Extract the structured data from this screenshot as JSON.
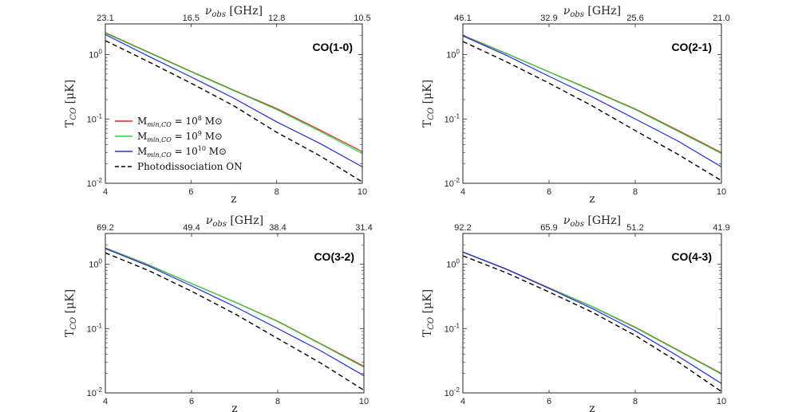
{
  "chart_data": {
    "type": "line",
    "layout": "2x2 grid",
    "shared": {
      "xlabel": "z",
      "ylabel_main": "T",
      "ylabel_sub": "CO",
      "ylabel_units": "[μK]",
      "top_xlabel_main": "ν",
      "top_xlabel_sub": "obs",
      "top_xlabel_units": "[GHz]",
      "xlim": [
        4,
        10
      ],
      "ylim": [
        0.01,
        3
      ],
      "yscale": "log",
      "xticks": [
        4,
        6,
        8,
        10
      ],
      "yticks": [
        {
          "value": 0.01,
          "base": "10",
          "exp": "-2"
        },
        {
          "value": 0.1,
          "base": "10",
          "exp": "-1"
        },
        {
          "value": 1,
          "base": "10",
          "exp": "0"
        }
      ],
      "top_tick_z": [
        4,
        6,
        8,
        10
      ],
      "x": [
        4,
        5,
        6,
        7,
        8,
        9,
        10
      ]
    },
    "legend": {
      "placement": "lower-left of CO(1-0) panel",
      "entries": [
        {
          "prefix": "M",
          "sub": "min,CO",
          "mid": " = 10",
          "sup": "8",
          "suffix": " M⊙",
          "color": "#e8232a",
          "dash": false
        },
        {
          "prefix": "M",
          "sub": "min,CO",
          "mid": " = 10",
          "sup": "9",
          "suffix": " M⊙",
          "color": "#27d43a",
          "dash": false
        },
        {
          "prefix": "M",
          "sub": "min,CO",
          "mid": " = 10",
          "sup": "10",
          "suffix": " M⊙",
          "color": "#1f2ee0",
          "dash": false
        },
        {
          "prefix": "Photodissociation ON",
          "sub": "",
          "mid": "",
          "sup": "",
          "suffix": "",
          "color": "#000000",
          "dash": true
        }
      ]
    },
    "panels": [
      {
        "title": "CO(1-0)",
        "top_ticks": [
          "23.1",
          "16.5",
          "12.8",
          "10.5"
        ],
        "series": [
          {
            "name": "Mmin,CO = 10^8 Msun",
            "values": [
              2.2,
              1.1,
              0.55,
              0.28,
              0.145,
              0.068,
              0.031
            ]
          },
          {
            "name": "Mmin,CO = 10^9 Msun",
            "values": [
              2.15,
              1.08,
              0.54,
              0.275,
              0.14,
              0.065,
              0.029
            ]
          },
          {
            "name": "Mmin,CO = 10^10 Msun",
            "values": [
              2.05,
              0.95,
              0.45,
              0.21,
              0.09,
              0.042,
              0.018
            ]
          },
          {
            "name": "Photodissociation ON",
            "values": [
              1.65,
              0.78,
              0.36,
              0.16,
              0.062,
              0.027,
              0.0105
            ]
          }
        ]
      },
      {
        "title": "CO(2-1)",
        "top_ticks": [
          "46.1",
          "32.9",
          "25.6",
          "21.0"
        ],
        "series": [
          {
            "name": "Mmin,CO = 10^8 Msun",
            "values": [
              2.0,
              1.05,
              0.54,
              0.28,
              0.143,
              0.066,
              0.03
            ]
          },
          {
            "name": "Mmin,CO = 10^9 Msun",
            "values": [
              1.97,
              1.04,
              0.535,
              0.275,
              0.14,
              0.064,
              0.029
            ]
          },
          {
            "name": "Mmin,CO = 10^10 Msun",
            "values": [
              1.95,
              0.98,
              0.46,
              0.22,
              0.1,
              0.045,
              0.018
            ]
          },
          {
            "name": "Photodissociation ON",
            "values": [
              1.6,
              0.78,
              0.36,
              0.16,
              0.066,
              0.028,
              0.011
            ]
          }
        ]
      },
      {
        "title": "CO(3-2)",
        "top_ticks": [
          "69.2",
          "49.4",
          "38.4",
          "31.4"
        ],
        "series": [
          {
            "name": "Mmin,CO = 10^8 Msun",
            "values": [
              1.8,
              0.98,
              0.5,
              0.26,
              0.13,
              0.058,
              0.026
            ]
          },
          {
            "name": "Mmin,CO = 10^9 Msun",
            "values": [
              1.78,
              0.97,
              0.5,
              0.258,
              0.128,
              0.057,
              0.025
            ]
          },
          {
            "name": "Mmin,CO = 10^10 Msun",
            "values": [
              1.75,
              0.94,
              0.46,
              0.22,
              0.1,
              0.045,
              0.0185
            ]
          },
          {
            "name": "Photodissociation ON",
            "values": [
              1.5,
              0.8,
              0.38,
              0.17,
              0.07,
              0.029,
              0.011
            ]
          }
        ]
      },
      {
        "title": "CO(4-3)",
        "top_ticks": [
          "92.2",
          "65.9",
          "51.2",
          "41.9"
        ],
        "series": [
          {
            "name": "Mmin,CO = 10^8 Msun",
            "values": [
              1.55,
              0.85,
              0.43,
              0.22,
              0.105,
              0.046,
              0.02
            ]
          },
          {
            "name": "Mmin,CO = 10^9 Msun",
            "values": [
              1.53,
              0.84,
              0.425,
              0.218,
              0.103,
              0.045,
              0.0195
            ]
          },
          {
            "name": "Mmin,CO = 10^10 Msun",
            "values": [
              1.55,
              0.84,
              0.42,
              0.205,
              0.092,
              0.037,
              0.014
            ]
          },
          {
            "name": "Photodissociation ON",
            "values": [
              1.35,
              0.74,
              0.37,
              0.18,
              0.078,
              0.03,
              0.0105
            ]
          }
        ]
      }
    ]
  }
}
